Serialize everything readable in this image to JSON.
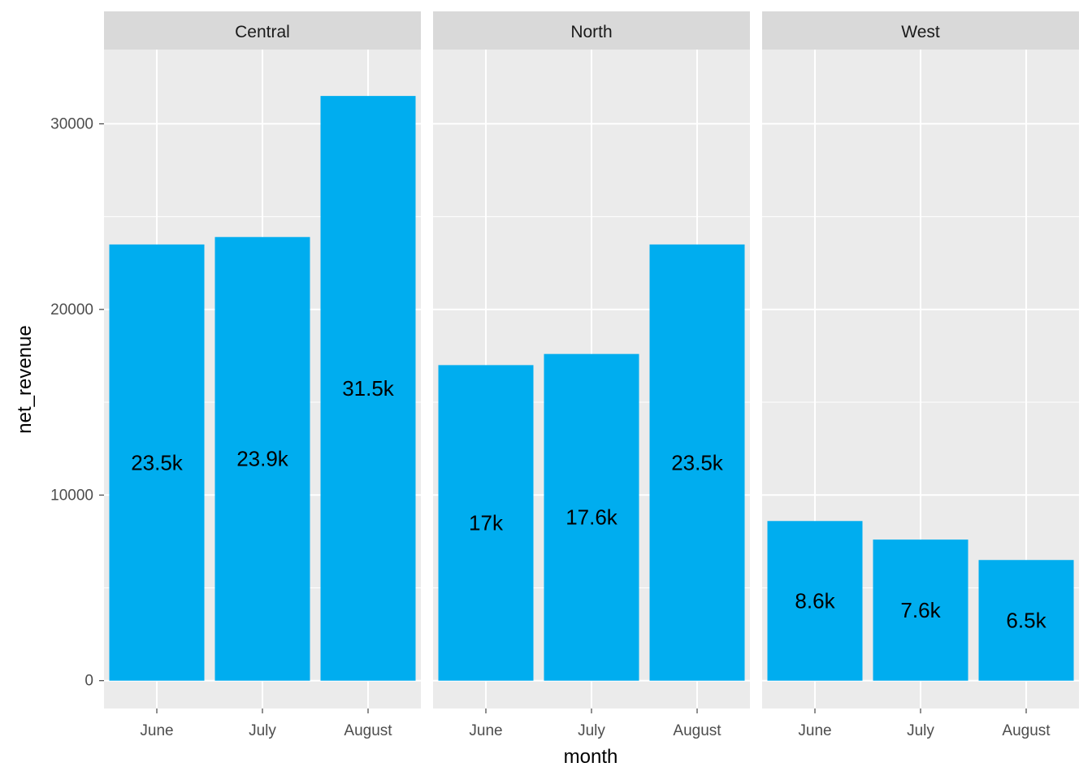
{
  "chart_data": {
    "type": "bar",
    "xlabel": "month",
    "ylabel": "net_revenue",
    "ylim": [
      -1500,
      34000
    ],
    "y_ticks": [
      0,
      10000,
      20000,
      30000
    ],
    "y_tick_labels": [
      "0",
      "10000",
      "20000",
      "30000"
    ],
    "categories": [
      "June",
      "July",
      "August"
    ],
    "grid": true,
    "bar_color": "#00ADEF",
    "panel_background": "#EBEBEB",
    "strip_background": "#D9D9D9",
    "facets": [
      {
        "name": "Central",
        "values": [
          23500,
          23900,
          31500
        ],
        "labels": [
          "23.5k",
          "23.9k",
          "31.5k"
        ]
      },
      {
        "name": "North",
        "values": [
          17000,
          17600,
          23500
        ],
        "labels": [
          "17k",
          "17.6k",
          "23.5k"
        ]
      },
      {
        "name": "West",
        "values": [
          8600,
          7600,
          6500
        ],
        "labels": [
          "8.6k",
          "7.6k",
          "6.5k"
        ]
      }
    ]
  }
}
